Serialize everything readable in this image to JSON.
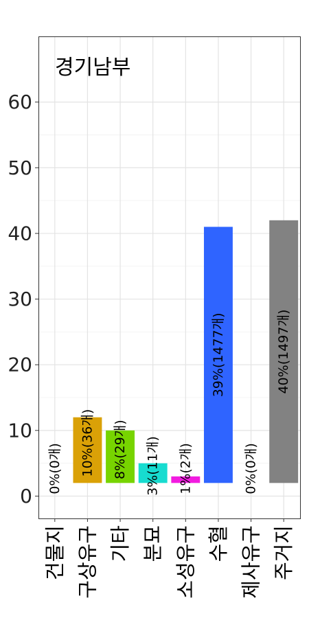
{
  "chart_data": {
    "type": "bar",
    "title": "경기남부",
    "xlabel": "",
    "ylabel": "",
    "ylim": [
      -3.4,
      70
    ],
    "yticks": [
      0,
      10,
      20,
      30,
      40,
      50,
      60
    ],
    "grid": true,
    "bar_baseline": 2,
    "categories": [
      "건물지",
      "구상유구",
      "기타",
      "분묘",
      "소성유구",
      "수혈",
      "제사유구",
      "주거지"
    ],
    "category_lines": [
      [
        "건물지"
      ],
      [
        "구상유구"
      ],
      [
        "기타"
      ],
      [
        "분묘"
      ],
      [
        "소성유구"
      ],
      [
        "수혈"
      ],
      [
        "제사유구"
      ],
      [
        "주거지"
      ]
    ],
    "values": [
      0,
      12,
      10,
      5,
      3,
      41,
      0,
      42
    ],
    "labels": [
      "0%(0개)",
      "10%(36개)",
      "8%(29개)",
      "3%(11개)",
      "1%(2개)",
      "39%(1477개)",
      "0%(0개)",
      "40%(1497개)"
    ],
    "colors": [
      "#e41a1c",
      "#daa107",
      "#77d400",
      "#17dcd0",
      "#f21be0",
      "#2f64ff",
      "#9b4dff",
      "#828282"
    ]
  }
}
